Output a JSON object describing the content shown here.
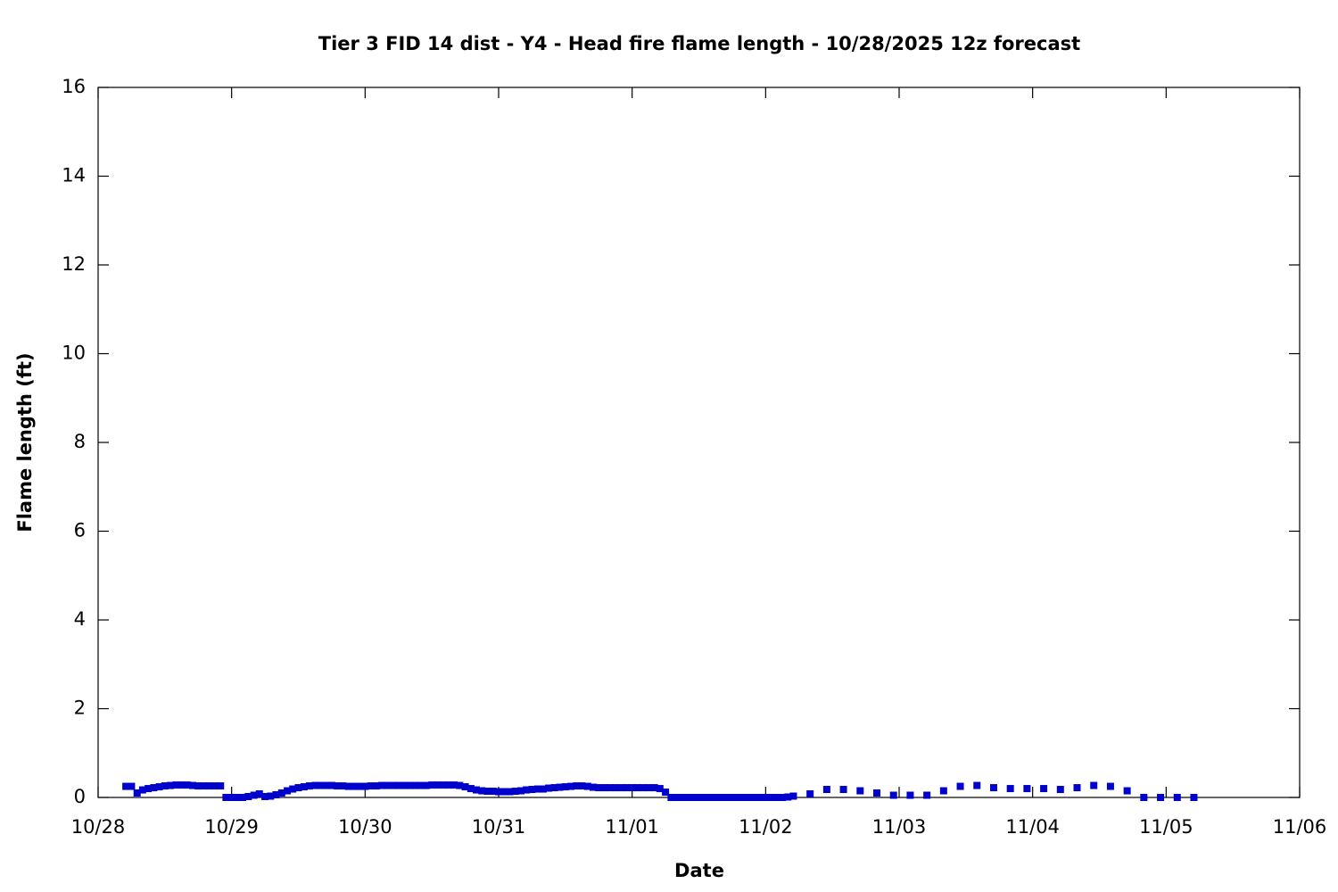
{
  "chart_data": {
    "type": "scatter",
    "title": "Tier 3 FID 14 dist - Y4 - Head fire flame length - 10/28/2025 12z forecast",
    "x_label": "Date",
    "y_label": "Flame length (ft)",
    "color": "#0000cc",
    "xlim": [
      0,
      9
    ],
    "xticks": [
      {
        "value": 0,
        "label": "10/28"
      },
      {
        "value": 1,
        "label": "10/29"
      },
      {
        "value": 2,
        "label": "10/30"
      },
      {
        "value": 3,
        "label": "10/31"
      },
      {
        "value": 4,
        "label": "11/01"
      },
      {
        "value": 5,
        "label": "11/02"
      },
      {
        "value": 6,
        "label": "11/03"
      },
      {
        "value": 7,
        "label": "11/04"
      },
      {
        "value": 8,
        "label": "11/05"
      },
      {
        "value": 9,
        "label": "11/06"
      }
    ],
    "ylim": [
      0,
      16
    ],
    "yticks": [
      0,
      2,
      4,
      6,
      8,
      10,
      12,
      14,
      16
    ],
    "x": [
      0.208,
      0.25,
      0.292,
      0.333,
      0.375,
      0.417,
      0.458,
      0.5,
      0.542,
      0.583,
      0.625,
      0.667,
      0.708,
      0.75,
      0.792,
      0.833,
      0.875,
      0.917,
      0.958,
      1,
      1.042,
      1.083,
      1.125,
      1.167,
      1.208,
      1.25,
      1.292,
      1.333,
      1.375,
      1.417,
      1.458,
      1.5,
      1.542,
      1.583,
      1.625,
      1.667,
      1.708,
      1.75,
      1.792,
      1.833,
      1.875,
      1.917,
      1.958,
      2,
      2.042,
      2.083,
      2.125,
      2.167,
      2.208,
      2.25,
      2.292,
      2.333,
      2.375,
      2.417,
      2.458,
      2.5,
      2.542,
      2.583,
      2.625,
      2.667,
      2.708,
      2.75,
      2.792,
      2.833,
      2.875,
      2.917,
      2.958,
      3,
      3.042,
      3.083,
      3.125,
      3.167,
      3.208,
      3.25,
      3.292,
      3.333,
      3.375,
      3.417,
      3.458,
      3.5,
      3.542,
      3.583,
      3.625,
      3.667,
      3.708,
      3.75,
      3.792,
      3.833,
      3.875,
      3.917,
      3.958,
      4,
      4.042,
      4.083,
      4.125,
      4.167,
      4.208,
      4.25,
      4.292,
      4.333,
      4.375,
      4.417,
      4.458,
      4.5,
      4.542,
      4.583,
      4.625,
      4.667,
      4.708,
      4.75,
      4.792,
      4.833,
      4.875,
      4.917,
      4.958,
      5,
      5.042,
      5.083,
      5.125,
      5.167,
      5.208,
      5.333,
      5.458,
      5.583,
      5.708,
      5.833,
      5.958,
      6.083,
      6.208,
      6.333,
      6.458,
      6.583,
      6.708,
      6.833,
      6.958,
      7.083,
      7.208,
      7.333,
      7.458,
      7.583,
      7.708,
      7.833,
      7.958,
      8.083,
      8.208
    ],
    "values": [
      0.25,
      0.25,
      0.1,
      0.17,
      0.2,
      0.22,
      0.24,
      0.26,
      0.27,
      0.28,
      0.28,
      0.28,
      0.27,
      0.26,
      0.26,
      0.26,
      0.26,
      0.26,
      0,
      0,
      0,
      0,
      0.02,
      0.05,
      0.08,
      0.02,
      0.03,
      0.06,
      0.1,
      0.15,
      0.19,
      0.22,
      0.24,
      0.26,
      0.27,
      0.27,
      0.27,
      0.27,
      0.26,
      0.26,
      0.25,
      0.25,
      0.25,
      0.25,
      0.26,
      0.26,
      0.27,
      0.27,
      0.27,
      0.27,
      0.27,
      0.27,
      0.27,
      0.27,
      0.27,
      0.28,
      0.28,
      0.28,
      0.28,
      0.28,
      0.27,
      0.24,
      0.2,
      0.17,
      0.15,
      0.14,
      0.14,
      0.13,
      0.13,
      0.13,
      0.14,
      0.15,
      0.17,
      0.18,
      0.19,
      0.19,
      0.21,
      0.22,
      0.23,
      0.24,
      0.25,
      0.26,
      0.26,
      0.25,
      0.23,
      0.22,
      0.22,
      0.22,
      0.22,
      0.22,
      0.22,
      0.22,
      0.22,
      0.22,
      0.22,
      0.22,
      0.2,
      0.12,
      0,
      0,
      0,
      0,
      0,
      0,
      0,
      0,
      0,
      0,
      0,
      0,
      0,
      0,
      0,
      0,
      0,
      0,
      0,
      0,
      0,
      0.01,
      0.03,
      0.08,
      0.18,
      0.18,
      0.15,
      0.1,
      0.05,
      0.05,
      0.05,
      0.15,
      0.25,
      0.27,
      0.22,
      0.2,
      0.2,
      0.2,
      0.18,
      0.22,
      0.27,
      0.25,
      0.15,
      0,
      0,
      0,
      0
    ]
  }
}
